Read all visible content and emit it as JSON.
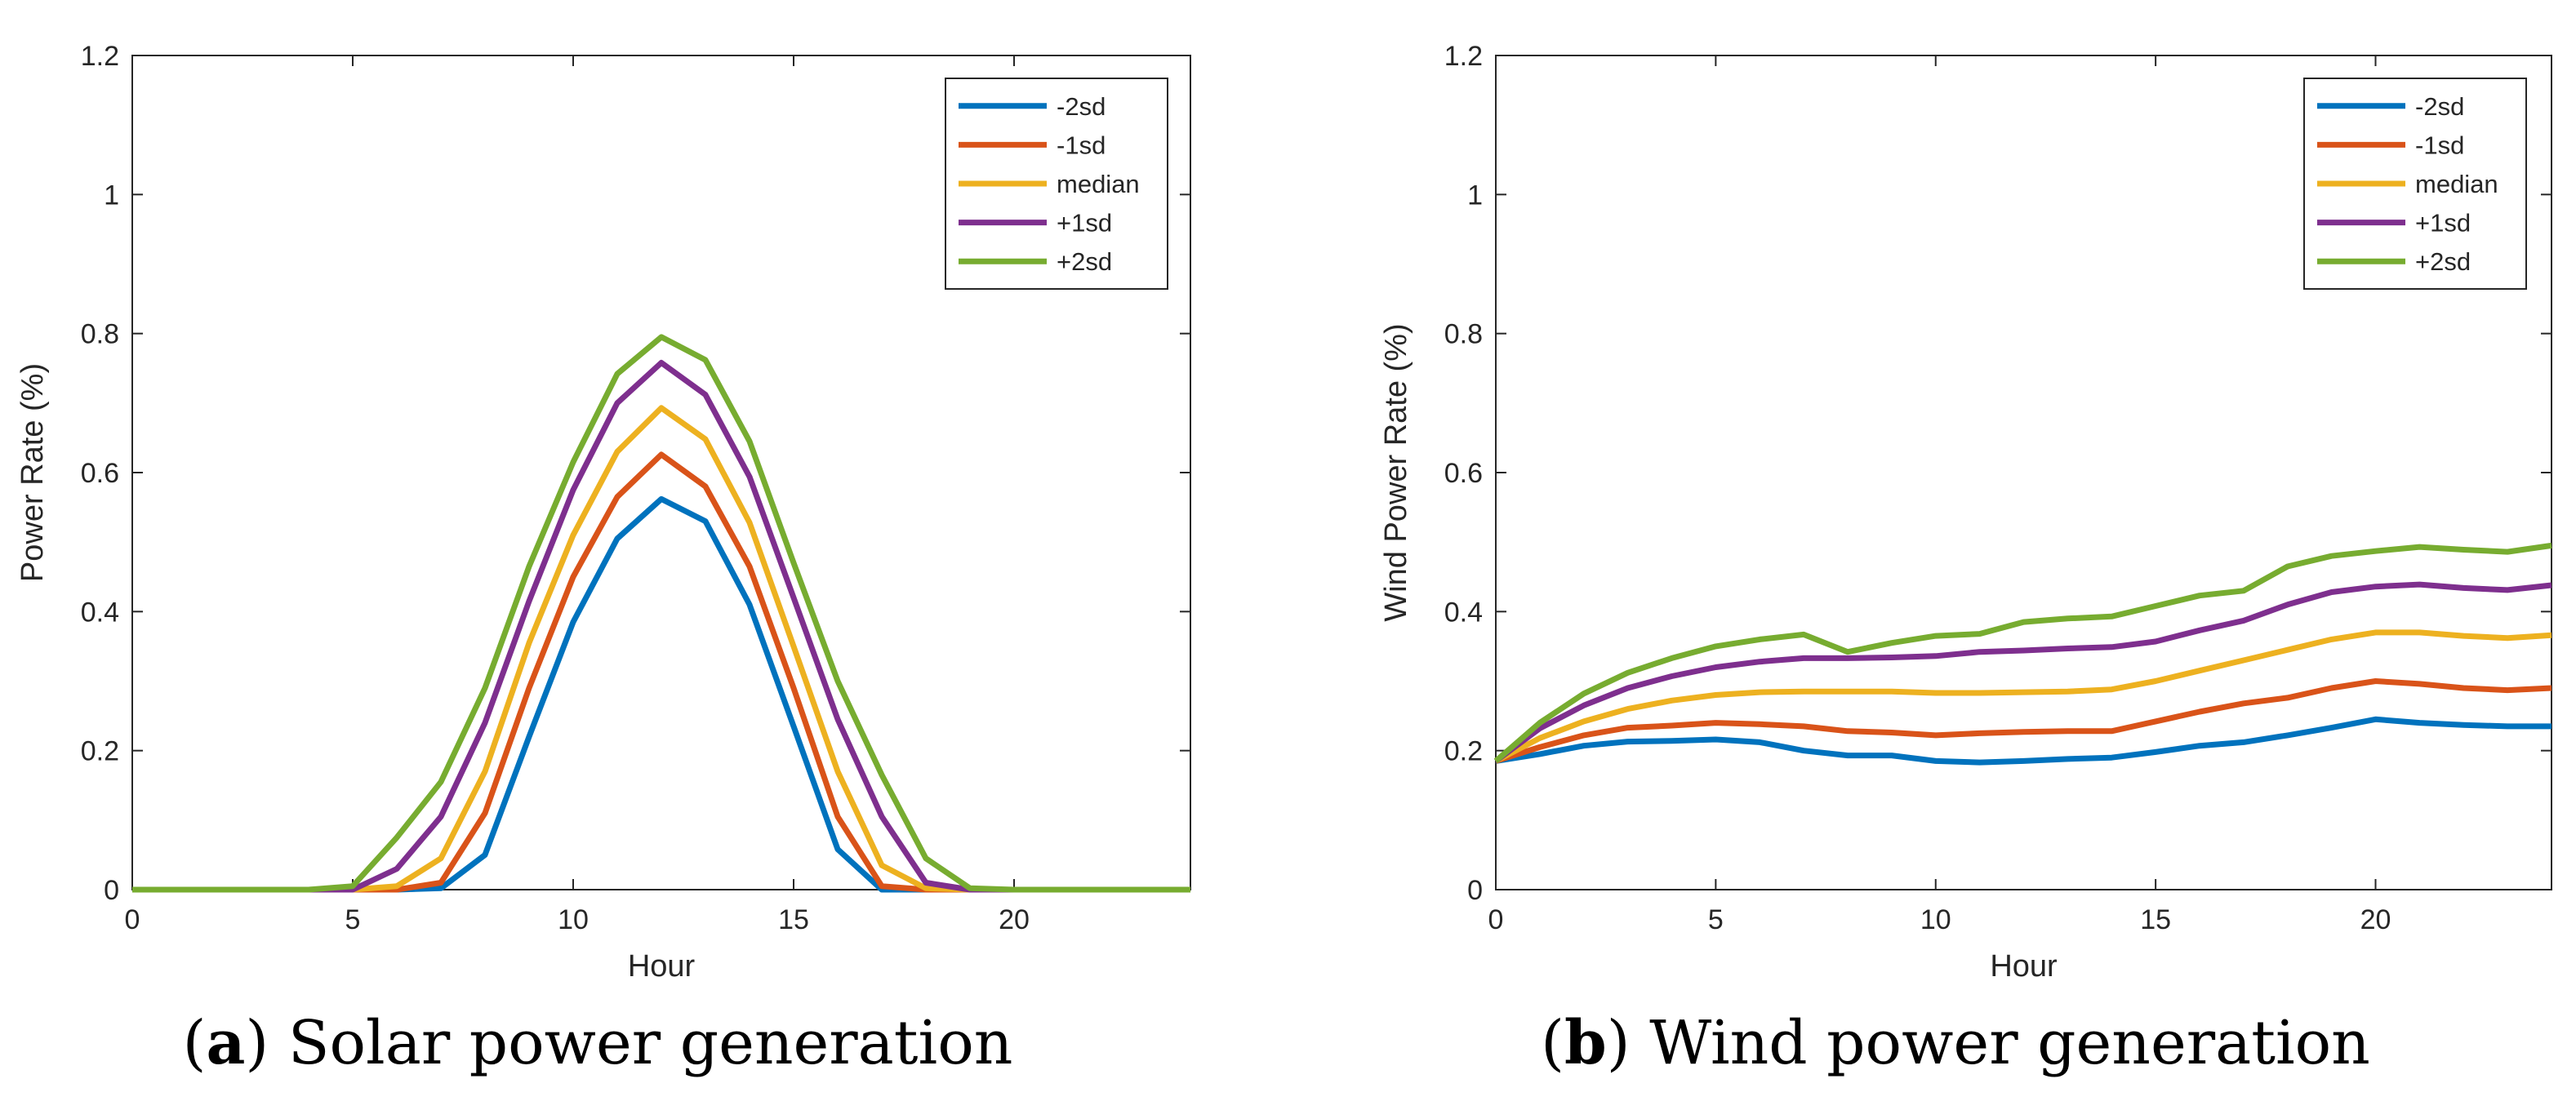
{
  "colors": {
    "-2sd": "#0072BD",
    "-1sd": "#D95319",
    "median": "#EDB120",
    "+1sd": "#7E2F8E",
    "+2sd": "#77AC30"
  },
  "captions": [
    {
      "letter": "a",
      "text": "Solar power generation"
    },
    {
      "letter": "b",
      "text": "Wind power generation"
    }
  ],
  "chart_data": [
    {
      "type": "line",
      "xlabel": "Hour",
      "ylabel": "Power Rate (%)",
      "xlim": [
        0,
        24
      ],
      "ylim": [
        0,
        1.2
      ],
      "xticks": [
        0,
        5,
        10,
        15,
        20
      ],
      "yticks": [
        0,
        0.2,
        0.4,
        0.6,
        0.8,
        1,
        1.2
      ],
      "ytick_labels": [
        "0",
        "0.2",
        "0.4",
        "0.6",
        "0.8",
        "1",
        "1.2"
      ],
      "grid": false,
      "legend": "top-right",
      "x": [
        0,
        1,
        2,
        3,
        4,
        5,
        6,
        7,
        8,
        9,
        10,
        11,
        12,
        13,
        14,
        15,
        16,
        17,
        18,
        19,
        20,
        21,
        22,
        23,
        24
      ],
      "series": [
        {
          "name": "-2sd",
          "values": [
            0,
            0,
            0,
            0,
            0,
            0,
            0,
            0.002,
            0.05,
            0.22,
            0.385,
            0.505,
            0.562,
            0.53,
            0.41,
            0.235,
            0.058,
            0,
            0,
            0,
            0,
            0,
            0,
            0,
            0
          ]
        },
        {
          "name": "-1sd",
          "values": [
            0,
            0,
            0,
            0,
            0,
            0,
            0,
            0.01,
            0.11,
            0.29,
            0.45,
            0.565,
            0.626,
            0.58,
            0.465,
            0.29,
            0.105,
            0.005,
            0,
            0,
            0,
            0,
            0,
            0,
            0
          ]
        },
        {
          "name": "median",
          "values": [
            0,
            0,
            0,
            0,
            0,
            0,
            0.005,
            0.045,
            0.17,
            0.355,
            0.51,
            0.63,
            0.693,
            0.648,
            0.528,
            0.35,
            0.17,
            0.035,
            0.002,
            0,
            0,
            0,
            0,
            0,
            0
          ]
        },
        {
          "name": "+1sd",
          "values": [
            0,
            0,
            0,
            0,
            0,
            0,
            0.03,
            0.105,
            0.24,
            0.415,
            0.575,
            0.7,
            0.758,
            0.712,
            0.594,
            0.42,
            0.245,
            0.105,
            0.01,
            0,
            0,
            0,
            0,
            0,
            0
          ]
        },
        {
          "name": "+2sd",
          "values": [
            0,
            0,
            0,
            0,
            0,
            0.005,
            0.075,
            0.155,
            0.29,
            0.465,
            0.615,
            0.742,
            0.795,
            0.762,
            0.645,
            0.47,
            0.3,
            0.165,
            0.045,
            0.002,
            0,
            0,
            0,
            0,
            0
          ]
        }
      ]
    },
    {
      "type": "line",
      "xlabel": "Hour",
      "ylabel": "Wind Power Rate (%)",
      "xlim": [
        0,
        24
      ],
      "ylim": [
        0,
        1.2
      ],
      "xticks": [
        0,
        5,
        10,
        15,
        20
      ],
      "yticks": [
        0,
        0.2,
        0.4,
        0.6,
        0.8,
        1,
        1.2
      ],
      "ytick_labels": [
        "0",
        "0.2",
        "0.4",
        "0.6",
        "0.8",
        "1",
        "1.2"
      ],
      "grid": false,
      "legend": "top-right",
      "x": [
        0,
        1,
        2,
        3,
        4,
        5,
        6,
        7,
        8,
        9,
        10,
        11,
        12,
        13,
        14,
        15,
        16,
        17,
        18,
        19,
        20,
        21,
        22,
        23,
        24
      ],
      "series": [
        {
          "name": "-2sd",
          "values": [
            0.185,
            0.195,
            0.207,
            0.213,
            0.214,
            0.216,
            0.212,
            0.2,
            0.193,
            0.193,
            0.185,
            0.183,
            0.185,
            0.188,
            0.19,
            0.198,
            0.207,
            0.212,
            0.222,
            0.233,
            0.245,
            0.24,
            0.237,
            0.235,
            0.235
          ]
        },
        {
          "name": "-1sd",
          "values": [
            0.185,
            0.205,
            0.222,
            0.233,
            0.236,
            0.24,
            0.238,
            0.235,
            0.228,
            0.226,
            0.222,
            0.225,
            0.227,
            0.228,
            0.228,
            0.242,
            0.256,
            0.268,
            0.276,
            0.29,
            0.3,
            0.296,
            0.29,
            0.287,
            0.29
          ]
        },
        {
          "name": "median",
          "values": [
            0.185,
            0.218,
            0.242,
            0.26,
            0.272,
            0.28,
            0.284,
            0.285,
            0.285,
            0.285,
            0.283,
            0.283,
            0.284,
            0.285,
            0.288,
            0.3,
            0.315,
            0.33,
            0.345,
            0.36,
            0.37,
            0.37,
            0.365,
            0.362,
            0.366
          ]
        },
        {
          "name": "+1sd",
          "values": [
            0.185,
            0.232,
            0.265,
            0.29,
            0.307,
            0.32,
            0.328,
            0.333,
            0.333,
            0.334,
            0.336,
            0.342,
            0.344,
            0.347,
            0.349,
            0.357,
            0.373,
            0.387,
            0.41,
            0.428,
            0.436,
            0.439,
            0.434,
            0.431,
            0.438
          ]
        },
        {
          "name": "+2sd",
          "values": [
            0.185,
            0.24,
            0.282,
            0.312,
            0.333,
            0.35,
            0.36,
            0.367,
            0.342,
            0.355,
            0.365,
            0.368,
            0.385,
            0.39,
            0.393,
            0.408,
            0.423,
            0.43,
            0.465,
            0.48,
            0.487,
            0.493,
            0.489,
            0.486,
            0.495
          ]
        }
      ]
    }
  ]
}
